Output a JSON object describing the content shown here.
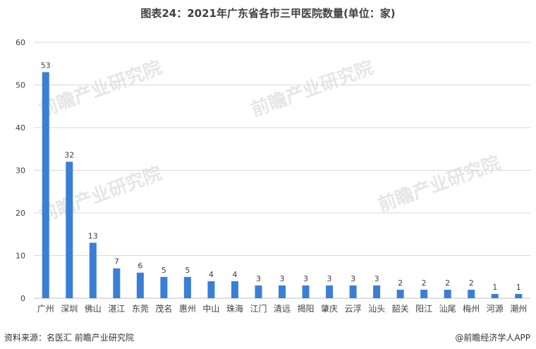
{
  "footer": {
    "source": "资料来源：名医汇 前瞻产业研究院",
    "brand": "@前瞻经济学人APP"
  },
  "watermark": "前瞻产业研究院",
  "colors": {
    "bar": "#3a7fd5",
    "grid": "#d9d9d9",
    "axis": "#bfbfbf"
  },
  "chart_data": {
    "type": "bar",
    "title": "图表24：2021年广东省各市三甲医院数量(单位：家)",
    "categories": [
      "广州",
      "深圳",
      "佛山",
      "湛江",
      "东莞",
      "茂名",
      "惠州",
      "中山",
      "珠海",
      "江门",
      "清远",
      "揭阳",
      "肇庆",
      "云浮",
      "汕头",
      "韶关",
      "阳江",
      "汕尾",
      "梅州",
      "河源",
      "潮州"
    ],
    "values": [
      53,
      32,
      13,
      7,
      6,
      5,
      5,
      4,
      4,
      3,
      3,
      3,
      3,
      3,
      3,
      2,
      2,
      2,
      2,
      1,
      1
    ],
    "ylim": [
      0,
      60
    ],
    "yticks": [
      0,
      10,
      20,
      30,
      40,
      50,
      60
    ],
    "xlabel": "",
    "ylabel": "",
    "grid": true,
    "legend": "none"
  }
}
